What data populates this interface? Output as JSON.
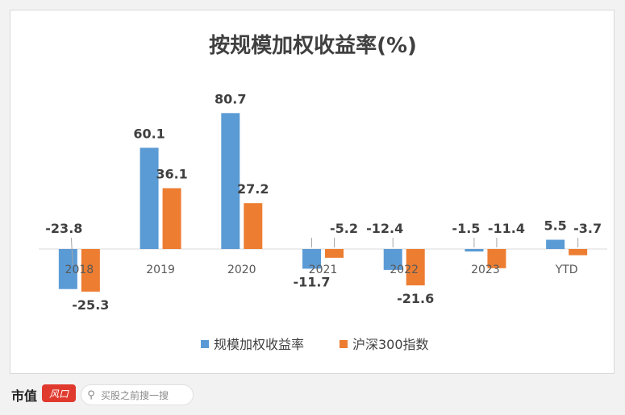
{
  "chart_data": {
    "type": "bar",
    "title": "按规模加权收益率(%)",
    "categories": [
      "2018",
      "2019",
      "2020",
      "2021",
      "2022",
      "2023",
      "YTD"
    ],
    "series": [
      {
        "name": "规模加权收益率",
        "values": [
          -23.8,
          60.1,
          80.7,
          -11.7,
          -12.4,
          -1.5,
          5.5
        ],
        "color": "#5b9bd5"
      },
      {
        "name": "沪深300指数",
        "values": [
          -25.3,
          36.1,
          27.2,
          -5.2,
          -21.6,
          -11.4,
          -3.7
        ],
        "color": "#ed7d31"
      }
    ],
    "ylim": [
      -30,
      85
    ],
    "grid": false,
    "legend_position": "bottom"
  },
  "footer": {
    "brand": "市值",
    "brand_mark": "风口",
    "search_placeholder": "买股之前搜一搜",
    "search_icon": "search-icon"
  }
}
